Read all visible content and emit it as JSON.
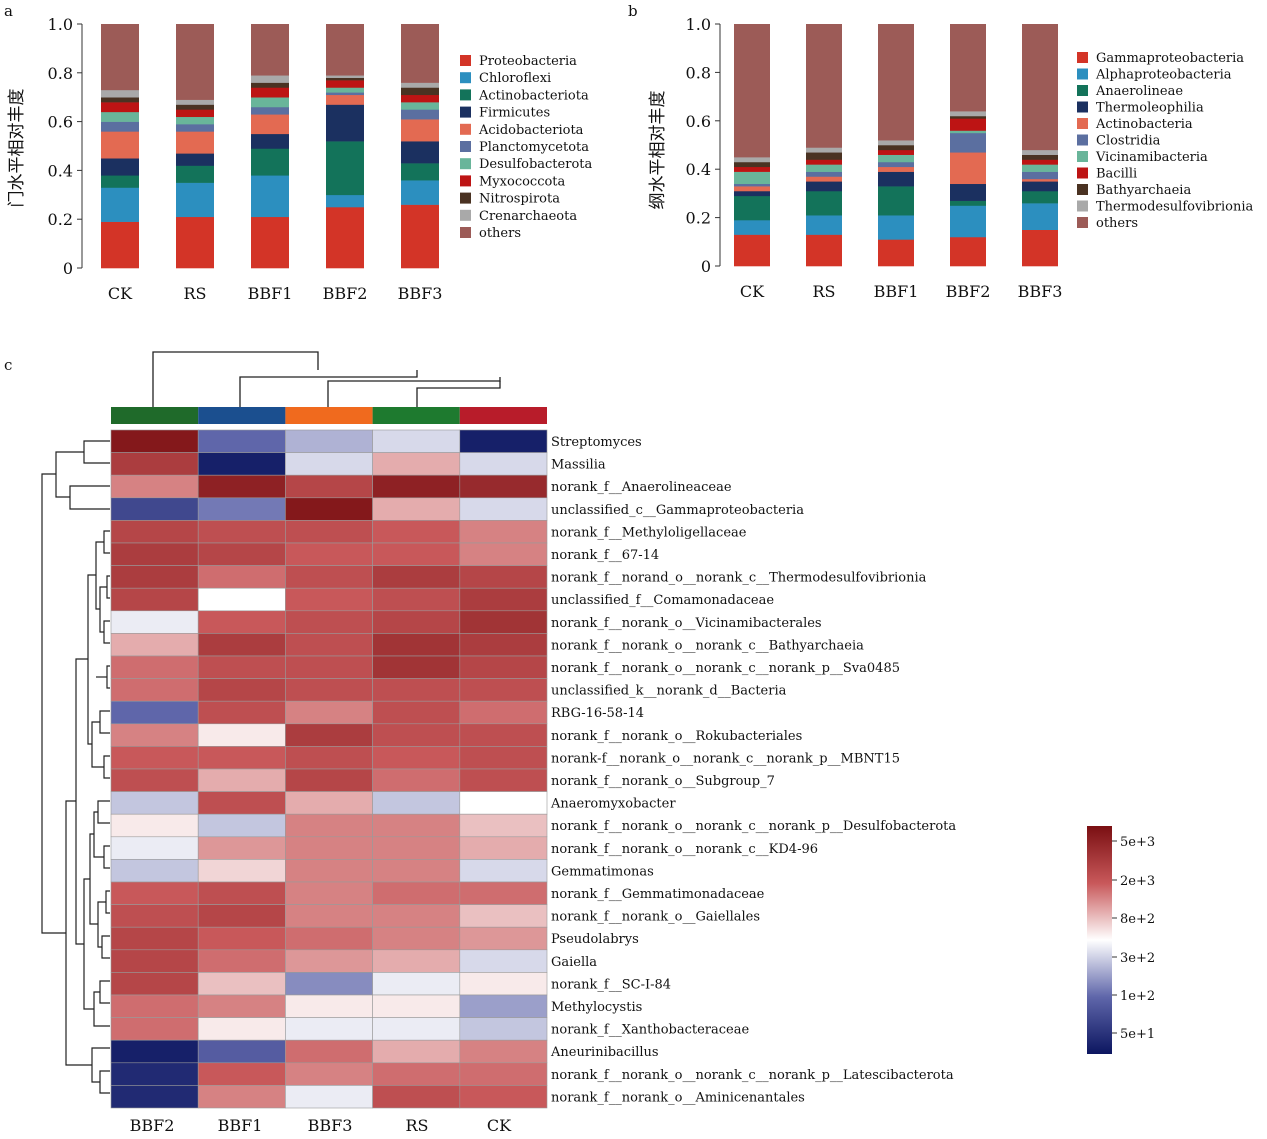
{
  "chart_data": [
    {
      "panel_label": "a",
      "type": "bar",
      "stacked": true,
      "ylabel": "门水平相对丰度",
      "ylim": [
        0,
        1.0
      ],
      "yticks": [
        "0",
        "0.2",
        "0.4",
        "0.6",
        "0.8",
        "1.0"
      ],
      "categories": [
        "CK",
        "RS",
        "BBF1",
        "BBF2",
        "BBF3"
      ],
      "legend_position": "right",
      "series": [
        {
          "name": "Proteobacteria",
          "color": "#d33427",
          "values": [
            0.19,
            0.21,
            0.21,
            0.25,
            0.26
          ]
        },
        {
          "name": "Chloroflexi",
          "color": "#2c8fbf",
          "values": [
            0.14,
            0.14,
            0.17,
            0.05,
            0.1
          ]
        },
        {
          "name": "Actinobacteriota",
          "color": "#13735a",
          "values": [
            0.05,
            0.07,
            0.11,
            0.22,
            0.07
          ]
        },
        {
          "name": "Firmicutes",
          "color": "#1b3060",
          "values": [
            0.07,
            0.05,
            0.06,
            0.15,
            0.09
          ]
        },
        {
          "name": "Acidobacteriota",
          "color": "#e36a52",
          "values": [
            0.11,
            0.09,
            0.08,
            0.04,
            0.09
          ]
        },
        {
          "name": "Planctomycetota",
          "color": "#5b6fa0",
          "values": [
            0.04,
            0.03,
            0.03,
            0.01,
            0.04
          ]
        },
        {
          "name": "Desulfobacterota",
          "color": "#69b59a",
          "values": [
            0.04,
            0.03,
            0.04,
            0.02,
            0.03
          ]
        },
        {
          "name": "Myxococcota",
          "color": "#bd1414",
          "values": [
            0.04,
            0.03,
            0.04,
            0.03,
            0.03
          ]
        },
        {
          "name": "Nitrospirota",
          "color": "#4a3222",
          "values": [
            0.02,
            0.02,
            0.02,
            0.01,
            0.03
          ]
        },
        {
          "name": "Crenarchaeota",
          "color": "#a9a9a9",
          "values": [
            0.03,
            0.02,
            0.03,
            0.01,
            0.02
          ]
        },
        {
          "name": "others",
          "color": "#9c5b57",
          "values": [
            0.27,
            0.31,
            0.21,
            0.21,
            0.24
          ]
        }
      ]
    },
    {
      "panel_label": "b",
      "type": "bar",
      "stacked": true,
      "ylabel": "纲水平相对丰度",
      "ylim": [
        0,
        1.0
      ],
      "yticks": [
        "0",
        "0.2",
        "0.4",
        "0.6",
        "0.8",
        "1.0"
      ],
      "categories": [
        "CK",
        "RS",
        "BBF1",
        "BBF2",
        "BBF3"
      ],
      "legend_position": "right",
      "series": [
        {
          "name": "Gammaproteobacteria",
          "color": "#d33427",
          "values": [
            0.13,
            0.13,
            0.11,
            0.12,
            0.15
          ]
        },
        {
          "name": "Alphaproteobacteria",
          "color": "#2c8fbf",
          "values": [
            0.06,
            0.08,
            0.1,
            0.13,
            0.11
          ]
        },
        {
          "name": "Anaerolineae",
          "color": "#13735a",
          "values": [
            0.1,
            0.1,
            0.12,
            0.02,
            0.05
          ]
        },
        {
          "name": "Thermoleophilia",
          "color": "#1b3060",
          "values": [
            0.02,
            0.04,
            0.06,
            0.07,
            0.04
          ]
        },
        {
          "name": "Actinobacteria",
          "color": "#e36a52",
          "values": [
            0.02,
            0.02,
            0.02,
            0.13,
            0.01
          ]
        },
        {
          "name": "Clostridia",
          "color": "#5b6fa0",
          "values": [
            0.01,
            0.02,
            0.02,
            0.08,
            0.03
          ]
        },
        {
          "name": "Vicinamibacteria",
          "color": "#69b59a",
          "values": [
            0.05,
            0.03,
            0.03,
            0.01,
            0.03
          ]
        },
        {
          "name": "Bacilli",
          "color": "#bd1414",
          "values": [
            0.02,
            0.02,
            0.02,
            0.05,
            0.02
          ]
        },
        {
          "name": "Bathyarchaeia",
          "color": "#4a3222",
          "values": [
            0.02,
            0.03,
            0.02,
            0.01,
            0.02
          ]
        },
        {
          "name": "Thermodesulfovibrionia",
          "color": "#a9a9a9",
          "values": [
            0.02,
            0.02,
            0.02,
            0.02,
            0.02
          ]
        },
        {
          "name": "others",
          "color": "#9c5b57",
          "values": [
            0.55,
            0.51,
            0.48,
            0.36,
            0.52
          ]
        }
      ]
    },
    {
      "panel_label": "c",
      "type": "heatmap",
      "columns": [
        "BBF2",
        "BBF1",
        "BBF3",
        "RS",
        "CK"
      ],
      "column_colors": [
        "#1f6a2a",
        "#1b4f8f",
        "#f06a1e",
        "#1e7a2f",
        "#b81c2a"
      ],
      "rows": [
        "Streptomyces",
        "Massilia",
        "norank_f__Anaerolineaceae",
        "unclassified_c__Gammaproteobacteria",
        "norank_f__Methyloligellaceae",
        "norank_f__67-14",
        "norank_f__norand_o__norank_c__Thermodesulfovibrionia",
        "unclassified_f__Comamonadaceae",
        "norank_f__norank_o__Vicinamibacterales",
        "norank_f__norank_o__norank_c__Bathyarchaeia",
        "norank_f__norank_o__norank_c__norank_p__Sva0485",
        "unclassified_k__norank_d__Bacteria",
        "RBG-16-58-14",
        "norank_f__norank_o__Rokubacteriales",
        "norank-f__norank_o__norank_c__norank_p__MBNT15",
        "norank_f__norank_o__Subgroup_7",
        "Anaeromyxobacter",
        "norank_f__norank_o__norank_c__norank_p__Desulfobacterota",
        "norank_f__norank_o__norank_c__KD4-96",
        "Gemmatimonas",
        "norank_f__Gemmatimonadaceae",
        "norank_f__norank_o__Gaiellales",
        "Pseudolabrys",
        "Gaiella",
        "norank_f__SC-I-84",
        "Methylocystis",
        "norank_f__Xanthobacteraceae",
        "Aneurinibacillus",
        "norank_f__norank_o__norank_c__norank_p__Latescibacterota",
        "norank_f__norank_o__Aminicenantales"
      ],
      "values_log10": [
        [
          3.9,
          1.6,
          2.0,
          2.2,
          0.9
        ],
        [
          3.5,
          0.9,
          2.2,
          2.8,
          2.2
        ],
        [
          3.0,
          3.8,
          3.4,
          3.8,
          3.7
        ],
        [
          1.3,
          1.7,
          3.9,
          2.8,
          2.2
        ],
        [
          3.4,
          3.3,
          3.3,
          3.2,
          3.0
        ],
        [
          3.5,
          3.4,
          3.2,
          3.2,
          3.0
        ],
        [
          3.5,
          3.1,
          3.3,
          3.5,
          3.4
        ],
        [
          3.4,
          2.4,
          3.2,
          3.3,
          3.5
        ],
        [
          2.3,
          3.2,
          3.3,
          3.4,
          3.6
        ],
        [
          2.8,
          3.5,
          3.3,
          3.6,
          3.5
        ],
        [
          3.1,
          3.3,
          3.3,
          3.6,
          3.4
        ],
        [
          3.1,
          3.4,
          3.3,
          3.3,
          3.3
        ],
        [
          1.6,
          3.3,
          3.0,
          3.3,
          3.1
        ],
        [
          3.0,
          2.5,
          3.5,
          3.3,
          3.3
        ],
        [
          3.2,
          3.2,
          3.3,
          3.2,
          3.3
        ],
        [
          3.3,
          2.8,
          3.4,
          3.1,
          3.3
        ],
        [
          2.1,
          3.3,
          2.8,
          2.1,
          2.4
        ],
        [
          2.5,
          2.1,
          3.0,
          3.0,
          2.7
        ],
        [
          2.3,
          2.9,
          3.0,
          3.0,
          2.8
        ],
        [
          2.1,
          2.6,
          3.0,
          3.0,
          2.2
        ],
        [
          3.2,
          3.3,
          3.0,
          3.1,
          3.1
        ],
        [
          3.3,
          3.4,
          3.0,
          3.0,
          2.7
        ],
        [
          3.4,
          3.2,
          3.1,
          3.0,
          2.9
        ],
        [
          3.4,
          3.1,
          2.9,
          2.8,
          2.2
        ],
        [
          3.4,
          2.7,
          1.8,
          2.3,
          2.5
        ],
        [
          3.1,
          3.0,
          2.5,
          2.5,
          1.9
        ],
        [
          3.1,
          2.5,
          2.3,
          2.3,
          2.1
        ],
        [
          0.9,
          1.5,
          3.1,
          2.8,
          3.0
        ],
        [
          1.0,
          3.2,
          3.0,
          3.1,
          3.1
        ],
        [
          1.0,
          3.0,
          2.3,
          3.3,
          3.2
        ]
      ],
      "colorbar_ticks": [
        "5e+3",
        "2e+3",
        "8e+2",
        "3e+2",
        "1e+2",
        "5e+1"
      ],
      "colorbar_scale": [
        "#0c1660",
        "#5f66aa",
        "#ffffff",
        "#c8585a",
        "#7a0f12"
      ]
    }
  ]
}
